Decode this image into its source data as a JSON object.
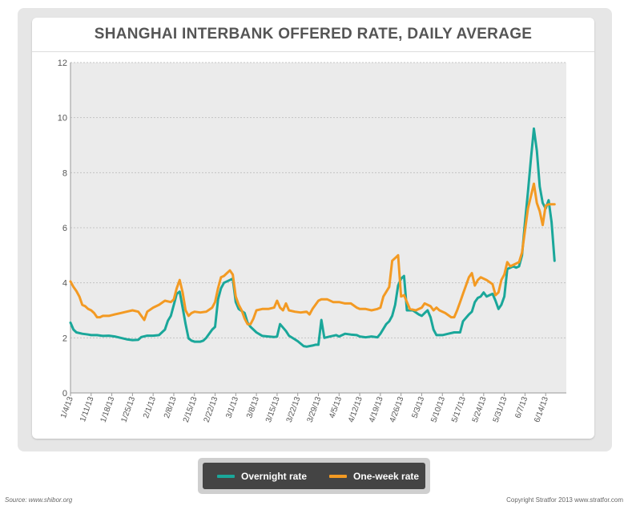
{
  "chart_data": {
    "type": "line",
    "title": "SHANGHAI INTERBANK OFFERED RATE, DAILY AVERAGE",
    "xlabel": "",
    "ylabel": "",
    "ylim": [
      0,
      12
    ],
    "yticks": [
      0,
      2,
      4,
      6,
      8,
      10,
      12
    ],
    "ytick_labels": [
      "0",
      "2",
      "4",
      "6",
      "8",
      "10",
      "12"
    ],
    "grid": true,
    "legend_position": "bottom-center",
    "x_start": "2013-01-04",
    "x_end": "2013-06-21",
    "xticks": [
      "2013-01-04",
      "2013-01-11",
      "2013-01-18",
      "2013-01-25",
      "2013-02-01",
      "2013-02-08",
      "2013-02-15",
      "2013-02-22",
      "2013-03-01",
      "2013-03-08",
      "2013-03-15",
      "2013-03-22",
      "2013-03-29",
      "2013-04-05",
      "2013-04-12",
      "2013-04-19",
      "2013-04-26",
      "2013-05-03",
      "2013-05-10",
      "2013-05-17",
      "2013-05-24",
      "2013-05-31",
      "2013-06-07",
      "2013-06-14"
    ],
    "xtick_labels": [
      "1/4/13",
      "1/11/13",
      "1/18/13",
      "1/25/13",
      "2/1/13",
      "2/8/13",
      "2/15/13",
      "2/22/13",
      "3/1/13",
      "3/8/13",
      "3/15/13",
      "3/22/13",
      "3/29/13",
      "4/5/13",
      "4/12/13",
      "4/19/13",
      "4/26/13",
      "5/3/13",
      "5/10/13",
      "5/17/13",
      "5/24/13",
      "5/31/13",
      "6/7/13",
      "6/14/13"
    ],
    "series": [
      {
        "name": "Overnight rate",
        "color": "#1aa79a",
        "points": [
          [
            "2013-01-04",
            2.55
          ],
          [
            "2013-01-05",
            2.3
          ],
          [
            "2013-01-06",
            2.2
          ],
          [
            "2013-01-08",
            2.15
          ],
          [
            "2013-01-10",
            2.12
          ],
          [
            "2013-01-11",
            2.1
          ],
          [
            "2013-01-13",
            2.1
          ],
          [
            "2013-01-15",
            2.07
          ],
          [
            "2013-01-17",
            2.08
          ],
          [
            "2013-01-19",
            2.05
          ],
          [
            "2013-01-21",
            2.0
          ],
          [
            "2013-01-23",
            1.95
          ],
          [
            "2013-01-25",
            1.92
          ],
          [
            "2013-01-27",
            1.93
          ],
          [
            "2013-01-28",
            2.03
          ],
          [
            "2013-01-30",
            2.08
          ],
          [
            "2013-02-01",
            2.08
          ],
          [
            "2013-02-03",
            2.1
          ],
          [
            "2013-02-05",
            2.3
          ],
          [
            "2013-02-06",
            2.62
          ],
          [
            "2013-02-07",
            2.8
          ],
          [
            "2013-02-08",
            3.2
          ],
          [
            "2013-02-09",
            3.6
          ],
          [
            "2013-02-10",
            3.68
          ],
          [
            "2013-02-11",
            3.1
          ],
          [
            "2013-02-12",
            2.5
          ],
          [
            "2013-02-13",
            1.98
          ],
          [
            "2013-02-14",
            1.9
          ],
          [
            "2013-02-15",
            1.86
          ],
          [
            "2013-02-17",
            1.86
          ],
          [
            "2013-02-18",
            1.9
          ],
          [
            "2013-02-19",
            2.0
          ],
          [
            "2013-02-21",
            2.3
          ],
          [
            "2013-02-22",
            2.4
          ],
          [
            "2013-02-23",
            3.4
          ],
          [
            "2013-02-24",
            3.8
          ],
          [
            "2013-02-25",
            4.0
          ],
          [
            "2013-02-27",
            4.1
          ],
          [
            "2013-02-28",
            4.15
          ],
          [
            "2013-03-01",
            3.3
          ],
          [
            "2013-03-02",
            3.05
          ],
          [
            "2013-03-04",
            2.9
          ],
          [
            "2013-03-05",
            2.55
          ],
          [
            "2013-03-06",
            2.4
          ],
          [
            "2013-03-07",
            2.3
          ],
          [
            "2013-03-08",
            2.2
          ],
          [
            "2013-03-10",
            2.07
          ],
          [
            "2013-03-12",
            2.05
          ],
          [
            "2013-03-14",
            2.03
          ],
          [
            "2013-03-15",
            2.05
          ],
          [
            "2013-03-16",
            2.5
          ],
          [
            "2013-03-18",
            2.25
          ],
          [
            "2013-03-19",
            2.08
          ],
          [
            "2013-03-21",
            1.95
          ],
          [
            "2013-03-22",
            1.88
          ],
          [
            "2013-03-24",
            1.7
          ],
          [
            "2013-03-25",
            1.68
          ],
          [
            "2013-03-27",
            1.72
          ],
          [
            "2013-03-28",
            1.75
          ],
          [
            "2013-03-29",
            1.75
          ],
          [
            "2013-03-30",
            2.65
          ],
          [
            "2013-03-31",
            2.0
          ],
          [
            "2013-04-02",
            2.05
          ],
          [
            "2013-04-04",
            2.1
          ],
          [
            "2013-04-05",
            2.05
          ],
          [
            "2013-04-07",
            2.15
          ],
          [
            "2013-04-09",
            2.12
          ],
          [
            "2013-04-11",
            2.1
          ],
          [
            "2013-04-12",
            2.05
          ],
          [
            "2013-04-14",
            2.02
          ],
          [
            "2013-04-16",
            2.05
          ],
          [
            "2013-04-18",
            2.02
          ],
          [
            "2013-04-19",
            2.15
          ],
          [
            "2013-04-21",
            2.5
          ],
          [
            "2013-04-22",
            2.6
          ],
          [
            "2013-04-23",
            2.8
          ],
          [
            "2013-04-24",
            3.2
          ],
          [
            "2013-04-25",
            3.9
          ],
          [
            "2013-04-26",
            4.15
          ],
          [
            "2013-04-27",
            4.25
          ],
          [
            "2013-04-28",
            3.0
          ],
          [
            "2013-04-30",
            3.0
          ],
          [
            "2013-05-02",
            2.85
          ],
          [
            "2013-05-03",
            2.8
          ],
          [
            "2013-05-04",
            2.9
          ],
          [
            "2013-05-05",
            3.0
          ],
          [
            "2013-05-06",
            2.75
          ],
          [
            "2013-05-07",
            2.3
          ],
          [
            "2013-05-08",
            2.1
          ],
          [
            "2013-05-10",
            2.1
          ],
          [
            "2013-05-12",
            2.15
          ],
          [
            "2013-05-14",
            2.2
          ],
          [
            "2013-05-16",
            2.2
          ],
          [
            "2013-05-17",
            2.6
          ],
          [
            "2013-05-19",
            2.85
          ],
          [
            "2013-05-20",
            2.95
          ],
          [
            "2013-05-21",
            3.3
          ],
          [
            "2013-05-22",
            3.45
          ],
          [
            "2013-05-23",
            3.5
          ],
          [
            "2013-05-24",
            3.65
          ],
          [
            "2013-05-25",
            3.5
          ],
          [
            "2013-05-27",
            3.6
          ],
          [
            "2013-05-28",
            3.35
          ],
          [
            "2013-05-29",
            3.05
          ],
          [
            "2013-05-30",
            3.2
          ],
          [
            "2013-05-31",
            3.5
          ],
          [
            "2013-06-01",
            4.5
          ],
          [
            "2013-06-03",
            4.6
          ],
          [
            "2013-06-04",
            4.55
          ],
          [
            "2013-06-05",
            4.6
          ],
          [
            "2013-06-06",
            5.0
          ],
          [
            "2013-06-07",
            6.2
          ],
          [
            "2013-06-08",
            7.3
          ],
          [
            "2013-06-09",
            8.5
          ],
          [
            "2013-06-10",
            9.6
          ],
          [
            "2013-06-11",
            8.8
          ],
          [
            "2013-06-12",
            7.5
          ],
          [
            "2013-06-13",
            6.9
          ],
          [
            "2013-06-14",
            6.7
          ],
          [
            "2013-06-15",
            7.0
          ],
          [
            "2013-06-16",
            6.2
          ],
          [
            "2013-06-17",
            4.8
          ]
        ]
      },
      {
        "name": "One-week rate",
        "color": "#f39a23",
        "points": [
          [
            "2013-01-04",
            4.05
          ],
          [
            "2013-01-05",
            3.85
          ],
          [
            "2013-01-06",
            3.7
          ],
          [
            "2013-01-07",
            3.5
          ],
          [
            "2013-01-08",
            3.2
          ],
          [
            "2013-01-09",
            3.15
          ],
          [
            "2013-01-10",
            3.05
          ],
          [
            "2013-01-11",
            3.0
          ],
          [
            "2013-01-12",
            2.9
          ],
          [
            "2013-01-13",
            2.75
          ],
          [
            "2013-01-14",
            2.75
          ],
          [
            "2013-01-15",
            2.8
          ],
          [
            "2013-01-17",
            2.8
          ],
          [
            "2013-01-19",
            2.85
          ],
          [
            "2013-01-21",
            2.9
          ],
          [
            "2013-01-23",
            2.95
          ],
          [
            "2013-01-25",
            3.0
          ],
          [
            "2013-01-27",
            2.95
          ],
          [
            "2013-01-28",
            2.8
          ],
          [
            "2013-01-29",
            2.65
          ],
          [
            "2013-01-30",
            2.95
          ],
          [
            "2013-02-01",
            3.1
          ],
          [
            "2013-02-03",
            3.2
          ],
          [
            "2013-02-05",
            3.35
          ],
          [
            "2013-02-07",
            3.3
          ],
          [
            "2013-02-08",
            3.4
          ],
          [
            "2013-02-09",
            3.8
          ],
          [
            "2013-02-10",
            4.1
          ],
          [
            "2013-02-11",
            3.65
          ],
          [
            "2013-02-12",
            3.0
          ],
          [
            "2013-02-13",
            2.8
          ],
          [
            "2013-02-14",
            2.9
          ],
          [
            "2013-02-15",
            2.95
          ],
          [
            "2013-02-17",
            2.92
          ],
          [
            "2013-02-19",
            2.95
          ],
          [
            "2013-02-21",
            3.1
          ],
          [
            "2013-02-22",
            3.3
          ],
          [
            "2013-02-23",
            3.8
          ],
          [
            "2013-02-24",
            4.2
          ],
          [
            "2013-02-25",
            4.25
          ],
          [
            "2013-02-26",
            4.35
          ],
          [
            "2013-02-27",
            4.45
          ],
          [
            "2013-02-28",
            4.3
          ],
          [
            "2013-03-01",
            3.5
          ],
          [
            "2013-03-02",
            3.2
          ],
          [
            "2013-03-03",
            3.0
          ],
          [
            "2013-03-04",
            2.7
          ],
          [
            "2013-03-05",
            2.5
          ],
          [
            "2013-03-06",
            2.5
          ],
          [
            "2013-03-07",
            2.7
          ],
          [
            "2013-03-08",
            3.0
          ],
          [
            "2013-03-10",
            3.05
          ],
          [
            "2013-03-12",
            3.05
          ],
          [
            "2013-03-14",
            3.1
          ],
          [
            "2013-03-15",
            3.35
          ],
          [
            "2013-03-16",
            3.1
          ],
          [
            "2013-03-17",
            3.0
          ],
          [
            "2013-03-18",
            3.25
          ],
          [
            "2013-03-19",
            3.0
          ],
          [
            "2013-03-21",
            2.95
          ],
          [
            "2013-03-23",
            2.92
          ],
          [
            "2013-03-25",
            2.95
          ],
          [
            "2013-03-26",
            2.85
          ],
          [
            "2013-03-27",
            3.05
          ],
          [
            "2013-03-28",
            3.2
          ],
          [
            "2013-03-29",
            3.35
          ],
          [
            "2013-03-30",
            3.4
          ],
          [
            "2013-04-01",
            3.4
          ],
          [
            "2013-04-03",
            3.3
          ],
          [
            "2013-04-05",
            3.3
          ],
          [
            "2013-04-07",
            3.25
          ],
          [
            "2013-04-09",
            3.25
          ],
          [
            "2013-04-11",
            3.1
          ],
          [
            "2013-04-12",
            3.05
          ],
          [
            "2013-04-14",
            3.05
          ],
          [
            "2013-04-16",
            3.0
          ],
          [
            "2013-04-18",
            3.05
          ],
          [
            "2013-04-19",
            3.1
          ],
          [
            "2013-04-20",
            3.5
          ],
          [
            "2013-04-22",
            3.85
          ],
          [
            "2013-04-23",
            4.8
          ],
          [
            "2013-04-24",
            4.9
          ],
          [
            "2013-04-25",
            5.0
          ],
          [
            "2013-04-26",
            3.5
          ],
          [
            "2013-04-27",
            3.55
          ],
          [
            "2013-04-29",
            3.05
          ],
          [
            "2013-05-01",
            3.0
          ],
          [
            "2013-05-03",
            3.1
          ],
          [
            "2013-05-04",
            3.25
          ],
          [
            "2013-05-05",
            3.2
          ],
          [
            "2013-05-06",
            3.15
          ],
          [
            "2013-05-07",
            3.0
          ],
          [
            "2013-05-08",
            3.1
          ],
          [
            "2013-05-09",
            3.0
          ],
          [
            "2013-05-11",
            2.9
          ],
          [
            "2013-05-13",
            2.75
          ],
          [
            "2013-05-14",
            2.75
          ],
          [
            "2013-05-15",
            3.0
          ],
          [
            "2013-05-16",
            3.3
          ],
          [
            "2013-05-17",
            3.6
          ],
          [
            "2013-05-19",
            4.2
          ],
          [
            "2013-05-20",
            4.35
          ],
          [
            "2013-05-21",
            3.9
          ],
          [
            "2013-05-22",
            4.1
          ],
          [
            "2013-05-23",
            4.2
          ],
          [
            "2013-05-24",
            4.15
          ],
          [
            "2013-05-25",
            4.1
          ],
          [
            "2013-05-27",
            3.95
          ],
          [
            "2013-05-28",
            3.55
          ],
          [
            "2013-05-29",
            3.65
          ],
          [
            "2013-05-30",
            4.1
          ],
          [
            "2013-05-31",
            4.3
          ],
          [
            "2013-06-01",
            4.75
          ],
          [
            "2013-06-02",
            4.6
          ],
          [
            "2013-06-03",
            4.65
          ],
          [
            "2013-06-04",
            4.7
          ],
          [
            "2013-06-05",
            4.75
          ],
          [
            "2013-06-06",
            5.1
          ],
          [
            "2013-06-07",
            5.9
          ],
          [
            "2013-06-08",
            6.7
          ],
          [
            "2013-06-10",
            7.6
          ],
          [
            "2013-06-11",
            6.9
          ],
          [
            "2013-06-12",
            6.6
          ],
          [
            "2013-06-13",
            6.1
          ],
          [
            "2013-06-14",
            6.8
          ],
          [
            "2013-06-15",
            6.85
          ],
          [
            "2013-06-16",
            6.85
          ],
          [
            "2013-06-17",
            6.85
          ]
        ]
      }
    ]
  },
  "legend": {
    "overnight_label": "Overnight rate",
    "weekly_label": "One-week rate"
  },
  "footer": {
    "source": "Source: www.shibor.org",
    "copyright": "Copyright Stratfor 2013    www.stratfor.com"
  },
  "colors": {
    "overnight": "#1aa79a",
    "weekly": "#f39a23",
    "plot_background": "#ebebeb",
    "legend_background": "#444444"
  }
}
